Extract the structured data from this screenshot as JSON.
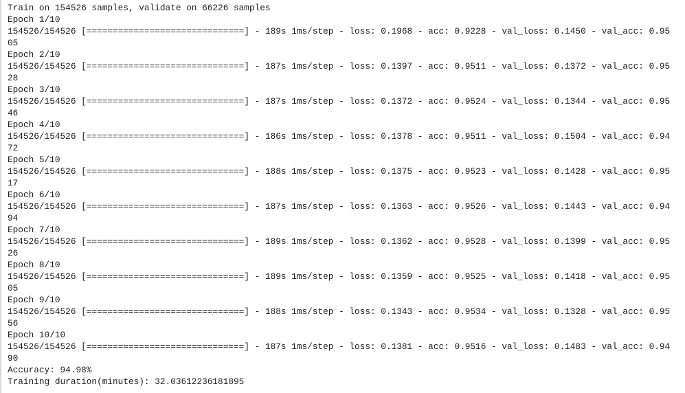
{
  "header": "Train on 154526 samples, validate on 66226 samples",
  "bar": "==============================",
  "epochs": [
    {
      "label": "Epoch 1/10",
      "progress": "154526/154526",
      "time": "189s",
      "step": "1ms/step",
      "loss": "0.1968",
      "acc": "0.9228",
      "val_loss": "0.1450",
      "val_acc": "0.9505"
    },
    {
      "label": "Epoch 2/10",
      "progress": "154526/154526",
      "time": "187s",
      "step": "1ms/step",
      "loss": "0.1397",
      "acc": "0.9511",
      "val_loss": "0.1372",
      "val_acc": "0.9528"
    },
    {
      "label": "Epoch 3/10",
      "progress": "154526/154526",
      "time": "187s",
      "step": "1ms/step",
      "loss": "0.1372",
      "acc": "0.9524",
      "val_loss": "0.1344",
      "val_acc": "0.9546"
    },
    {
      "label": "Epoch 4/10",
      "progress": "154526/154526",
      "time": "186s",
      "step": "1ms/step",
      "loss": "0.1378",
      "acc": "0.9511",
      "val_loss": "0.1504",
      "val_acc": "0.9472"
    },
    {
      "label": "Epoch 5/10",
      "progress": "154526/154526",
      "time": "188s",
      "step": "1ms/step",
      "loss": "0.1375",
      "acc": "0.9523",
      "val_loss": "0.1428",
      "val_acc": "0.9517"
    },
    {
      "label": "Epoch 6/10",
      "progress": "154526/154526",
      "time": "187s",
      "step": "1ms/step",
      "loss": "0.1363",
      "acc": "0.9526",
      "val_loss": "0.1443",
      "val_acc": "0.9494"
    },
    {
      "label": "Epoch 7/10",
      "progress": "154526/154526",
      "time": "189s",
      "step": "1ms/step",
      "loss": "0.1362",
      "acc": "0.9528",
      "val_loss": "0.1399",
      "val_acc": "0.9526"
    },
    {
      "label": "Epoch 8/10",
      "progress": "154526/154526",
      "time": "189s",
      "step": "1ms/step",
      "loss": "0.1359",
      "acc": "0.9525",
      "val_loss": "0.1418",
      "val_acc": "0.9505"
    },
    {
      "label": "Epoch 9/10",
      "progress": "154526/154526",
      "time": "188s",
      "step": "1ms/step",
      "loss": "0.1343",
      "acc": "0.9534",
      "val_loss": "0.1328",
      "val_acc": "0.9556"
    },
    {
      "label": "Epoch 10/10",
      "progress": "154526/154526",
      "time": "187s",
      "step": "1ms/step",
      "loss": "0.1381",
      "acc": "0.9516",
      "val_loss": "0.1483",
      "val_acc": "0.9490"
    }
  ],
  "summary": {
    "accuracy": "Accuracy: 94.98%",
    "duration": "Training duration(minutes): 32.03612236181895"
  }
}
